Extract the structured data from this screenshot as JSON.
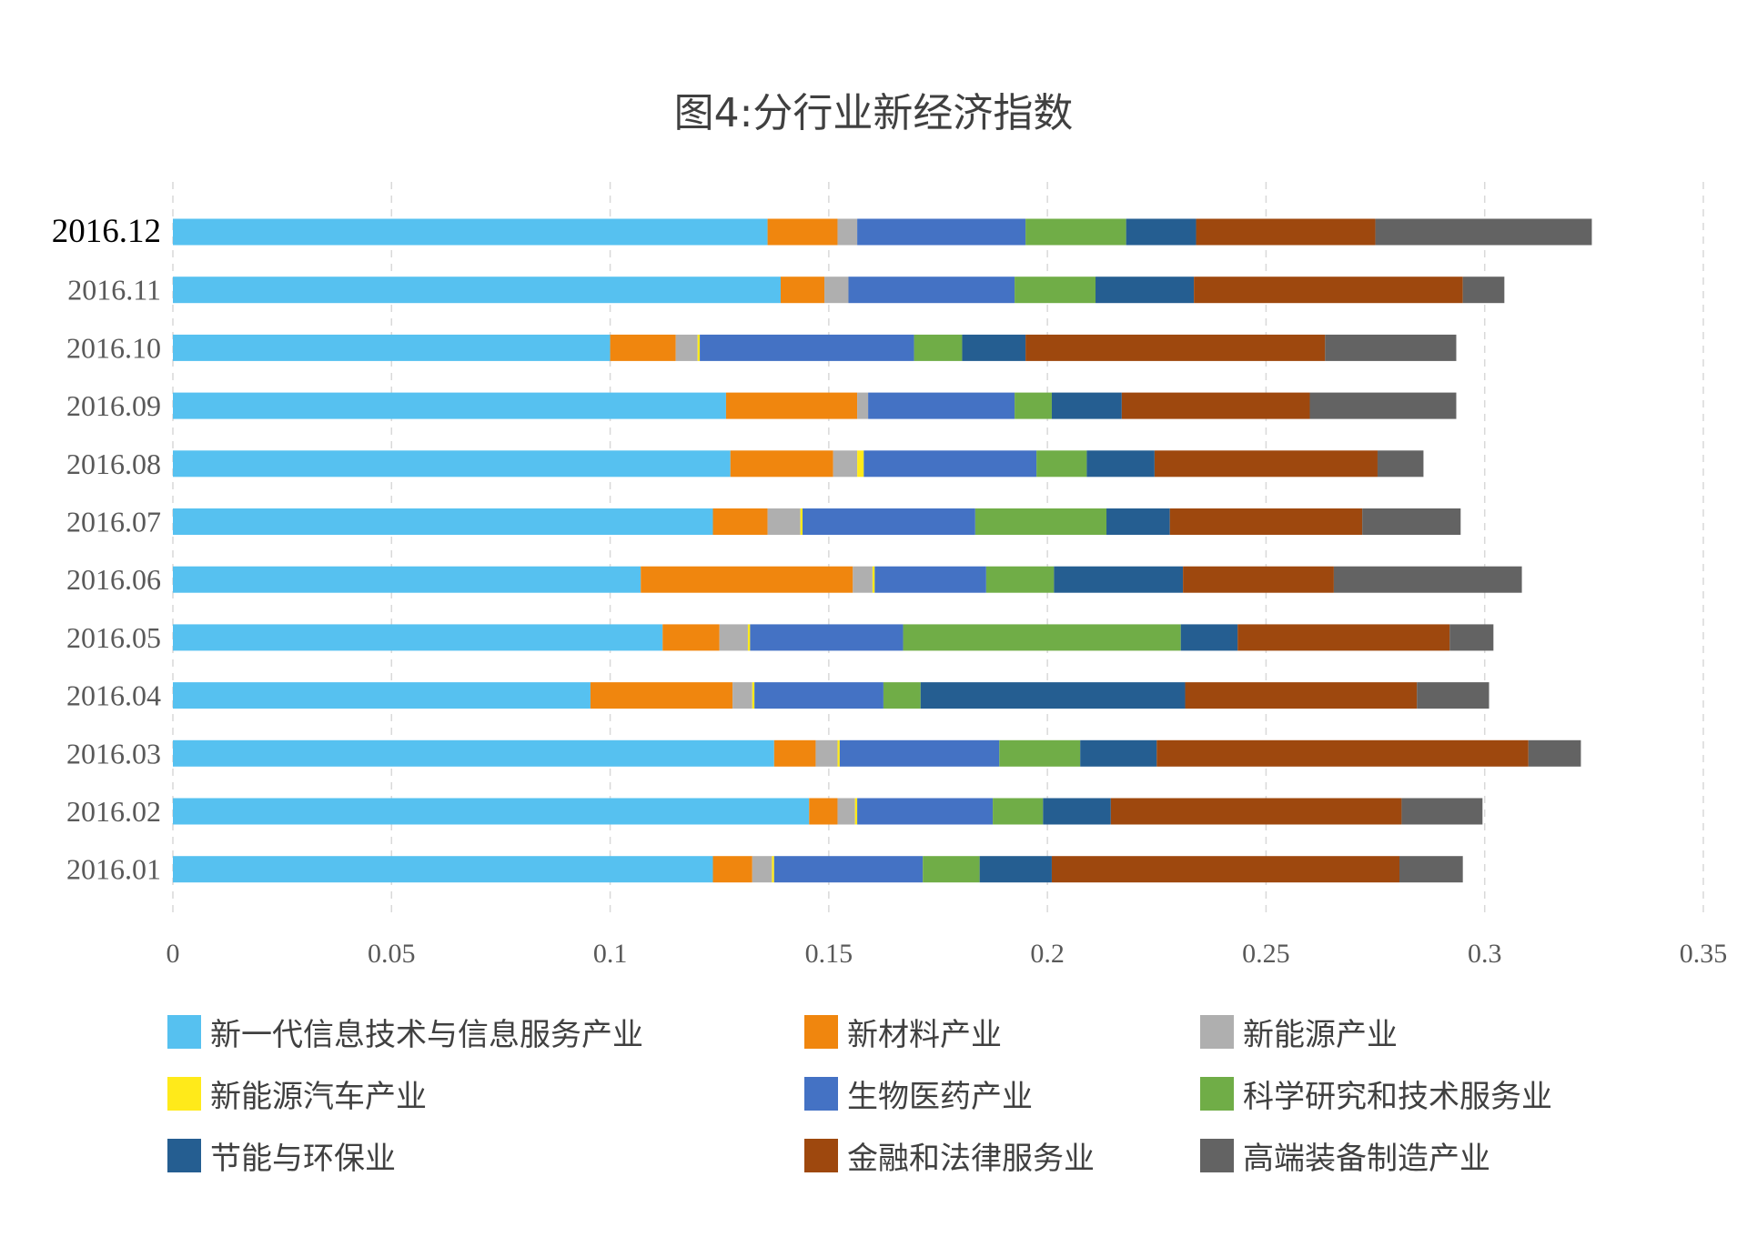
{
  "chart_data": {
    "type": "bar",
    "orientation": "horizontal",
    "stacked": true,
    "title": "图4:分行业新经济指数",
    "categories": [
      "2016.12",
      "2016.11",
      "2016.10",
      "2016.09",
      "2016.08",
      "2016.07",
      "2016.06",
      "2016.05",
      "2016.04",
      "2016.03",
      "2016.02",
      "2016.01"
    ],
    "xlim": [
      0,
      0.35
    ],
    "xticks": [
      0,
      0.05,
      0.1,
      0.15,
      0.2,
      0.25,
      0.3,
      0.35
    ],
    "xtick_labels": [
      "0",
      "0.05",
      "0.1",
      "0.15",
      "0.2",
      "0.25",
      "0.3",
      "0.35"
    ],
    "grid": "vertical dashed",
    "legend_position": "bottom",
    "series": [
      {
        "name": "新一代信息技术与信息服务产业",
        "color": "#56C1F0",
        "values": [
          0.136,
          0.139,
          0.1,
          0.1265,
          0.1275,
          0.1235,
          0.107,
          0.112,
          0.0955,
          0.1375,
          0.1455,
          0.1235
        ]
      },
      {
        "name": "新材料产业",
        "color": "#F0860E",
        "values": [
          0.016,
          0.01,
          0.015,
          0.03,
          0.0235,
          0.0125,
          0.0485,
          0.013,
          0.0325,
          0.0095,
          0.0065,
          0.009
        ]
      },
      {
        "name": "新能源产业",
        "color": "#AFAFAF",
        "values": [
          0.0045,
          0.0055,
          0.005,
          0.0025,
          0.0055,
          0.0075,
          0.0045,
          0.0065,
          0.0045,
          0.005,
          0.004,
          0.0045
        ]
      },
      {
        "name": "新能源汽车产业",
        "color": "#FFEA1A",
        "values": [
          0,
          0,
          0.0005,
          0,
          0.0015,
          0.0005,
          0.0005,
          0.0005,
          0.0005,
          0.0005,
          0.0005,
          0.0005
        ]
      },
      {
        "name": "生物医药产业",
        "color": "#4472C4",
        "values": [
          0.0385,
          0.038,
          0.049,
          0.0335,
          0.0395,
          0.0395,
          0.0255,
          0.035,
          0.0295,
          0.0365,
          0.031,
          0.034
        ]
      },
      {
        "name": "科学研究和技术服务业",
        "color": "#70AD47",
        "values": [
          0.023,
          0.0185,
          0.011,
          0.0085,
          0.0115,
          0.03,
          0.0155,
          0.0635,
          0.0085,
          0.0185,
          0.0115,
          0.013
        ]
      },
      {
        "name": "节能与环保业",
        "color": "#255E91",
        "values": [
          0.016,
          0.0225,
          0.0145,
          0.016,
          0.0155,
          0.0145,
          0.0295,
          0.013,
          0.0605,
          0.0175,
          0.0155,
          0.0165
        ]
      },
      {
        "name": "金融和法律服务业",
        "color": "#9E480E",
        "values": [
          0.041,
          0.0615,
          0.0685,
          0.043,
          0.051,
          0.044,
          0.0345,
          0.0485,
          0.053,
          0.085,
          0.0665,
          0.0795
        ]
      },
      {
        "name": "高端装备制造产业",
        "color": "#636363",
        "values": [
          0.0495,
          0.0095,
          0.03,
          0.0335,
          0.0105,
          0.0225,
          0.043,
          0.01,
          0.0165,
          0.012,
          0.0185,
          0.0145
        ]
      }
    ]
  }
}
